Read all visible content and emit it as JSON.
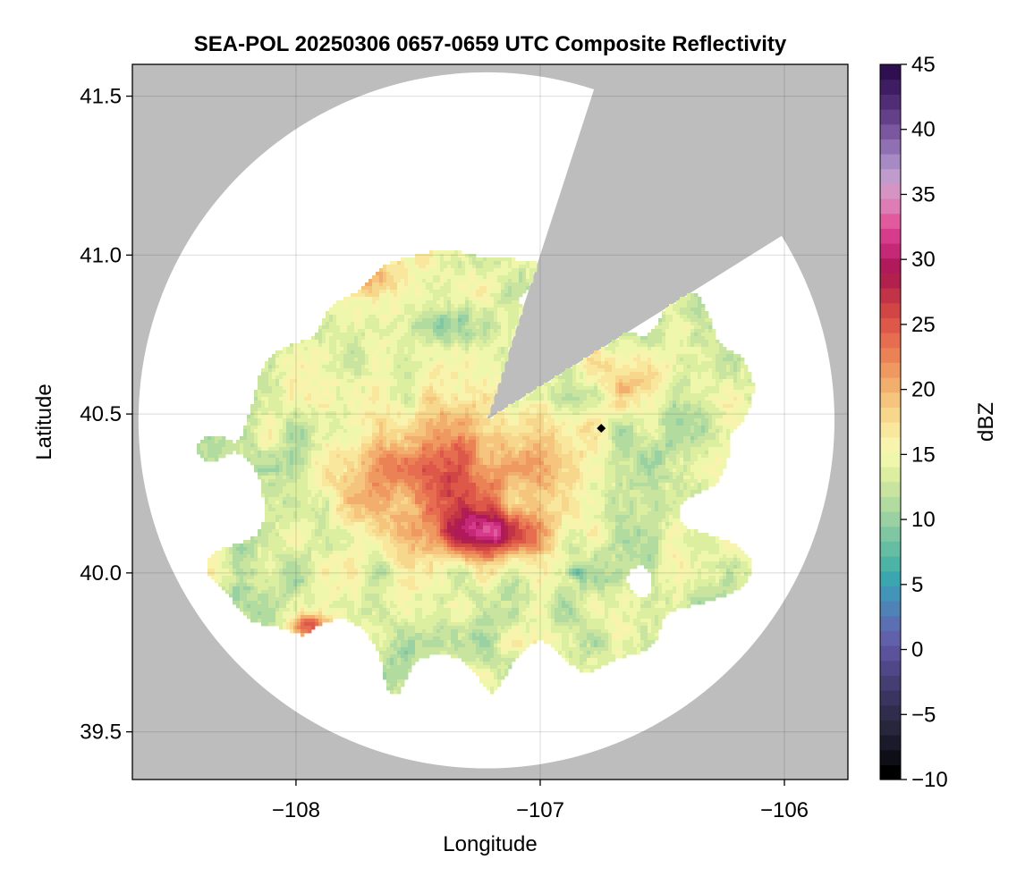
{
  "chart_data": {
    "type": "heatmap",
    "title": "SEA-POL 20250306 0657-0659 UTC Composite Reflectivity",
    "xlabel": "Longitude",
    "ylabel": "Latitude",
    "xlim": [
      -108.67,
      -105.74
    ],
    "ylim": [
      39.35,
      41.6
    ],
    "x_ticks": [
      {
        "value": -108,
        "label": "−108"
      },
      {
        "value": -107,
        "label": "−107"
      },
      {
        "value": -106,
        "label": "−106"
      }
    ],
    "y_ticks": [
      {
        "value": 39.5,
        "label": "39.5"
      },
      {
        "value": 40.0,
        "label": "40.0"
      },
      {
        "value": 40.5,
        "label": "40.5"
      },
      {
        "value": 41.0,
        "label": "41.0"
      },
      {
        "value": 41.5,
        "label": "41.5"
      }
    ],
    "grid": true,
    "background_color": "#bdbdbd",
    "radar": {
      "center": [
        -107.22,
        40.48
      ],
      "range_lon_deg": 1.425,
      "range_lat_deg": 1.095,
      "blocked_sector_deg": [
        18,
        58
      ],
      "marker": [
        -106.75,
        40.455
      ]
    },
    "reflectivity_regions": [
      {
        "lon": -107.35,
        "lat": 40.3,
        "sx": 0.45,
        "sy": 0.22,
        "dbz": 24
      },
      {
        "lon": -107.2,
        "lat": 40.12,
        "sx": 0.18,
        "sy": 0.07,
        "dbz": 27
      },
      {
        "lon": -107.75,
        "lat": 40.95,
        "sx": 0.18,
        "sy": 0.06,
        "dbz": 21
      },
      {
        "lon": -107.95,
        "lat": 39.83,
        "sx": 0.08,
        "sy": 0.04,
        "dbz": 25
      },
      {
        "lon": -106.6,
        "lat": 40.62,
        "sx": 0.18,
        "sy": 0.1,
        "dbz": 19
      },
      {
        "lon": -106.55,
        "lat": 40.35,
        "sx": 0.16,
        "sy": 0.07,
        "dbz": 11
      },
      {
        "lon": -107.45,
        "lat": 40.78,
        "sx": 0.14,
        "sy": 0.05,
        "dbz": 10
      },
      {
        "lon": -106.85,
        "lat": 40.0,
        "sx": 0.04,
        "sy": 0.02,
        "dbz": 7
      }
    ],
    "colorbar": {
      "label": "dBZ",
      "min": -10,
      "max": 45,
      "ticks": [
        {
          "value": -10,
          "label": "−10"
        },
        {
          "value": -5,
          "label": "−5"
        },
        {
          "value": 0,
          "label": "0"
        },
        {
          "value": 5,
          "label": "5"
        },
        {
          "value": 10,
          "label": "10"
        },
        {
          "value": 15,
          "label": "15"
        },
        {
          "value": 20,
          "label": "20"
        },
        {
          "value": 25,
          "label": "25"
        },
        {
          "value": 30,
          "label": "30"
        },
        {
          "value": 35,
          "label": "35"
        },
        {
          "value": 40,
          "label": "40"
        },
        {
          "value": 45,
          "label": "45"
        }
      ],
      "colors": [
        "#000000",
        "#0e0e16",
        "#1a1a2a",
        "#26263c",
        "#302c4e",
        "#3a3560",
        "#453e72",
        "#4f4788",
        "#5a539c",
        "#6160ab",
        "#5a70b2",
        "#4f82b6",
        "#4294b8",
        "#3ca6b0",
        "#4db3a6",
        "#65bda4",
        "#7fc7a3",
        "#99d1a2",
        "#b2dba0",
        "#c8e49e",
        "#dcee9f",
        "#eef7ab",
        "#f8f4ae",
        "#f8e79c",
        "#f7d78b",
        "#f5c47d",
        "#f2ae6c",
        "#ef985f",
        "#eb8256",
        "#e66d4f",
        "#de5849",
        "#d24545",
        "#c23348",
        "#b2214e",
        "#b01a5a",
        "#c52877",
        "#d63b8c",
        "#e05a9d",
        "#e07cb5",
        "#d694c5",
        "#c09ccd",
        "#a78ac3",
        "#9070b3",
        "#7a579f",
        "#65408a",
        "#512d75",
        "#3f1d62",
        "#2f0f50"
      ]
    }
  }
}
